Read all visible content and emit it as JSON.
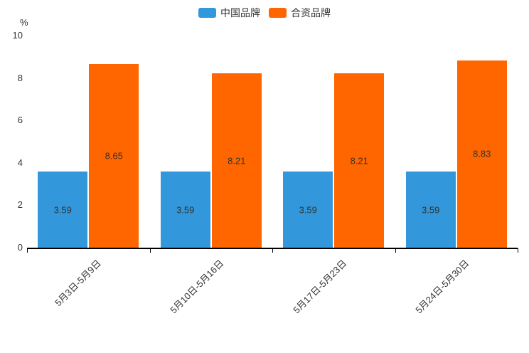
{
  "chart_data": {
    "type": "bar",
    "categories": [
      "5月3日-5月9日",
      "5月10日-5月16日",
      "5月17日-5月23日",
      "5月24日-5月30日"
    ],
    "series": [
      {
        "name": "中国品牌",
        "color": "#3398db",
        "values": [
          3.59,
          3.59,
          3.59,
          3.59
        ]
      },
      {
        "name": "合资品牌",
        "color": "#ff6600",
        "values": [
          8.65,
          8.21,
          8.21,
          8.83
        ]
      }
    ],
    "ylabel": "%",
    "ylim": [
      0,
      10
    ],
    "yticks": [
      0,
      2,
      4,
      6,
      8,
      10
    ],
    "grid": false,
    "legend_position": "top-center",
    "value_label_position": "inside-center",
    "x_label_rotation": -45
  }
}
